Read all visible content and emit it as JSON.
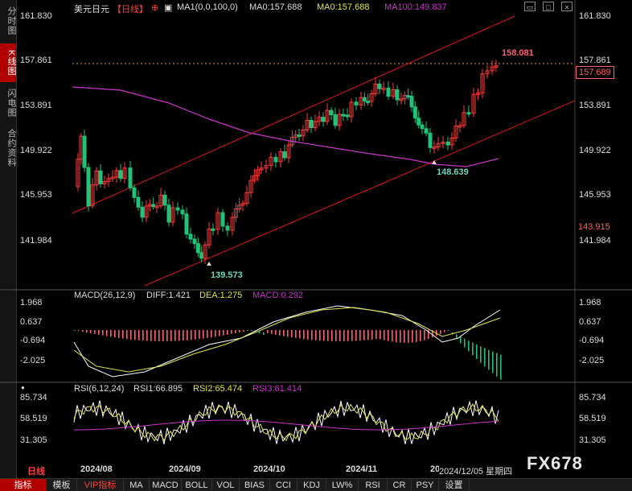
{
  "side_tabs": [
    "分时图",
    "K线图",
    "闪电图",
    "合约资料"
  ],
  "header": {
    "symbol": "美元日元",
    "period": "【日线】",
    "ma_params": "MA1(0,0,100,0)",
    "ma0": "MA0:157.688",
    "ma0_dup": "MA0:157.688",
    "ma100": "MA100:149.837"
  },
  "price_axis": [
    "161.830",
    "157.861",
    "153.891",
    "149.922",
    "145.953",
    "141.984"
  ],
  "price_left_axis": [
    "161.830",
    "157.861",
    "153.891",
    "149.922",
    "145.953",
    "141.984"
  ],
  "current_price": "157.689",
  "crosshair_price": "143.915",
  "annotations": {
    "high": "158.081",
    "low1": "139.573",
    "low2": "148.639"
  },
  "macd": {
    "params": "MACD(26,12,9)",
    "diff": "DIFF:1.421",
    "dea": "DEA:1.275",
    "macd": "MACD:0.292",
    "axis": [
      "1.968",
      "0.637",
      "-0.694",
      "-2.025"
    ]
  },
  "rsi": {
    "params": "RSI(6,12,24)",
    "rsi1": "RSI1:66.895",
    "rsi2": "RSI2:65.474",
    "rsi3": "RSI3:61.414",
    "axis": [
      "85.734",
      "58.519",
      "31.305"
    ]
  },
  "x_axis": [
    "2024/08",
    "2024/09",
    "2024/10",
    "2024/11",
    "20"
  ],
  "crosshair_date": "2024/12/05 星期四",
  "period_label": "日线",
  "watermark": "FX678",
  "bottom_tabs": [
    "指标",
    "模板",
    "VIP指标",
    "MA",
    "MACD",
    "BOLL",
    "VOL",
    "BIAS",
    "CCI",
    "KDJ",
    "LW%",
    "RSI",
    "CR",
    "PSY",
    "设置"
  ],
  "colors": {
    "up": "#ff3b3b",
    "down": "#1fc27a",
    "diff": "#ffffff",
    "dea": "#e6e64a",
    "rsi3": "#cc33cc",
    "ma100": "#cc33cc",
    "ma0": "#e6e64a",
    "channel": "#e01818"
  },
  "chart_data": [
    {
      "type": "candlestick",
      "x": [
        "2024/08",
        "2024/09",
        "2024/10",
        "2024/11",
        "2024/12"
      ],
      "ylim": [
        139.573,
        161.83
      ],
      "high": 158.081,
      "low": 139.573,
      "close_last": 157.689,
      "ma100_last": 149.837
    },
    {
      "type": "bar",
      "name": "MACD",
      "ylim": [
        -2.025,
        1.968
      ],
      "diff_last": 1.421,
      "dea_last": 1.275,
      "macd_last": 0.292
    },
    {
      "type": "line",
      "name": "RSI",
      "ylim": [
        31.305,
        85.734
      ],
      "rsi1_last": 66.895,
      "rsi2_last": 65.474,
      "rsi3_last": 61.414
    }
  ]
}
